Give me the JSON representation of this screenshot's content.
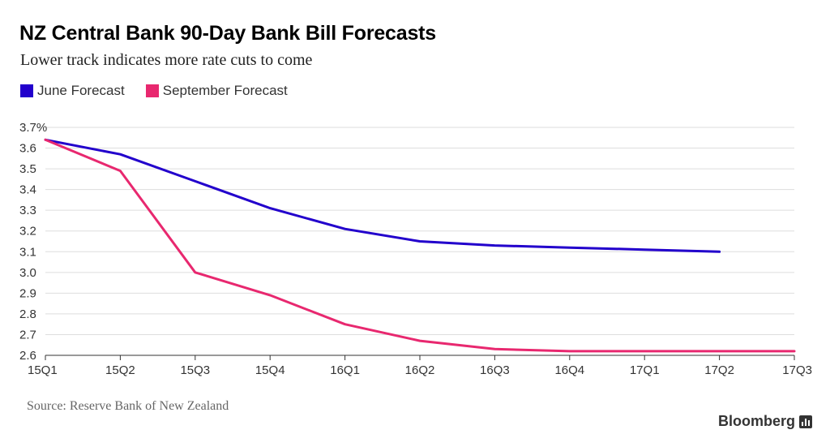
{
  "title": "NZ Central Bank 90-Day Bank Bill Forecasts",
  "subtitle": "Lower track indicates more rate cuts to come",
  "source": "Source: Reserve Bank of New Zealand",
  "brand": "Bloomberg",
  "brand_icon": "bloomberg-chart-icon",
  "colors": {
    "june": "#2200cc",
    "september": "#e8286f",
    "grid": "#dddddd",
    "axis": "#333333"
  },
  "chart_data": {
    "type": "line",
    "categories": [
      "15Q1",
      "15Q2",
      "15Q3",
      "15Q4",
      "16Q1",
      "16Q2",
      "16Q3",
      "16Q4",
      "17Q1",
      "17Q2",
      "17Q3"
    ],
    "y_tick_labels": [
      "3.7%",
      "3.6",
      "3.5",
      "3.4",
      "3.3",
      "3.2",
      "3.1",
      "3.0",
      "2.9",
      "2.8",
      "2.7",
      "2.6"
    ],
    "y_ticks": [
      3.7,
      3.6,
      3.5,
      3.4,
      3.3,
      3.2,
      3.1,
      3.0,
      2.9,
      2.8,
      2.7,
      2.6
    ],
    "ylim": [
      2.6,
      3.7
    ],
    "grid": true,
    "legend_position": "top-left",
    "series": [
      {
        "name": "June Forecast",
        "color": "#2200cc",
        "values": [
          3.64,
          3.57,
          3.44,
          3.31,
          3.21,
          3.15,
          3.13,
          3.12,
          3.11,
          3.1,
          null
        ]
      },
      {
        "name": "September Forecast",
        "color": "#e8286f",
        "values": [
          3.64,
          3.49,
          3.0,
          2.89,
          2.75,
          2.67,
          2.63,
          2.62,
          2.62,
          2.62,
          2.62
        ]
      }
    ]
  }
}
